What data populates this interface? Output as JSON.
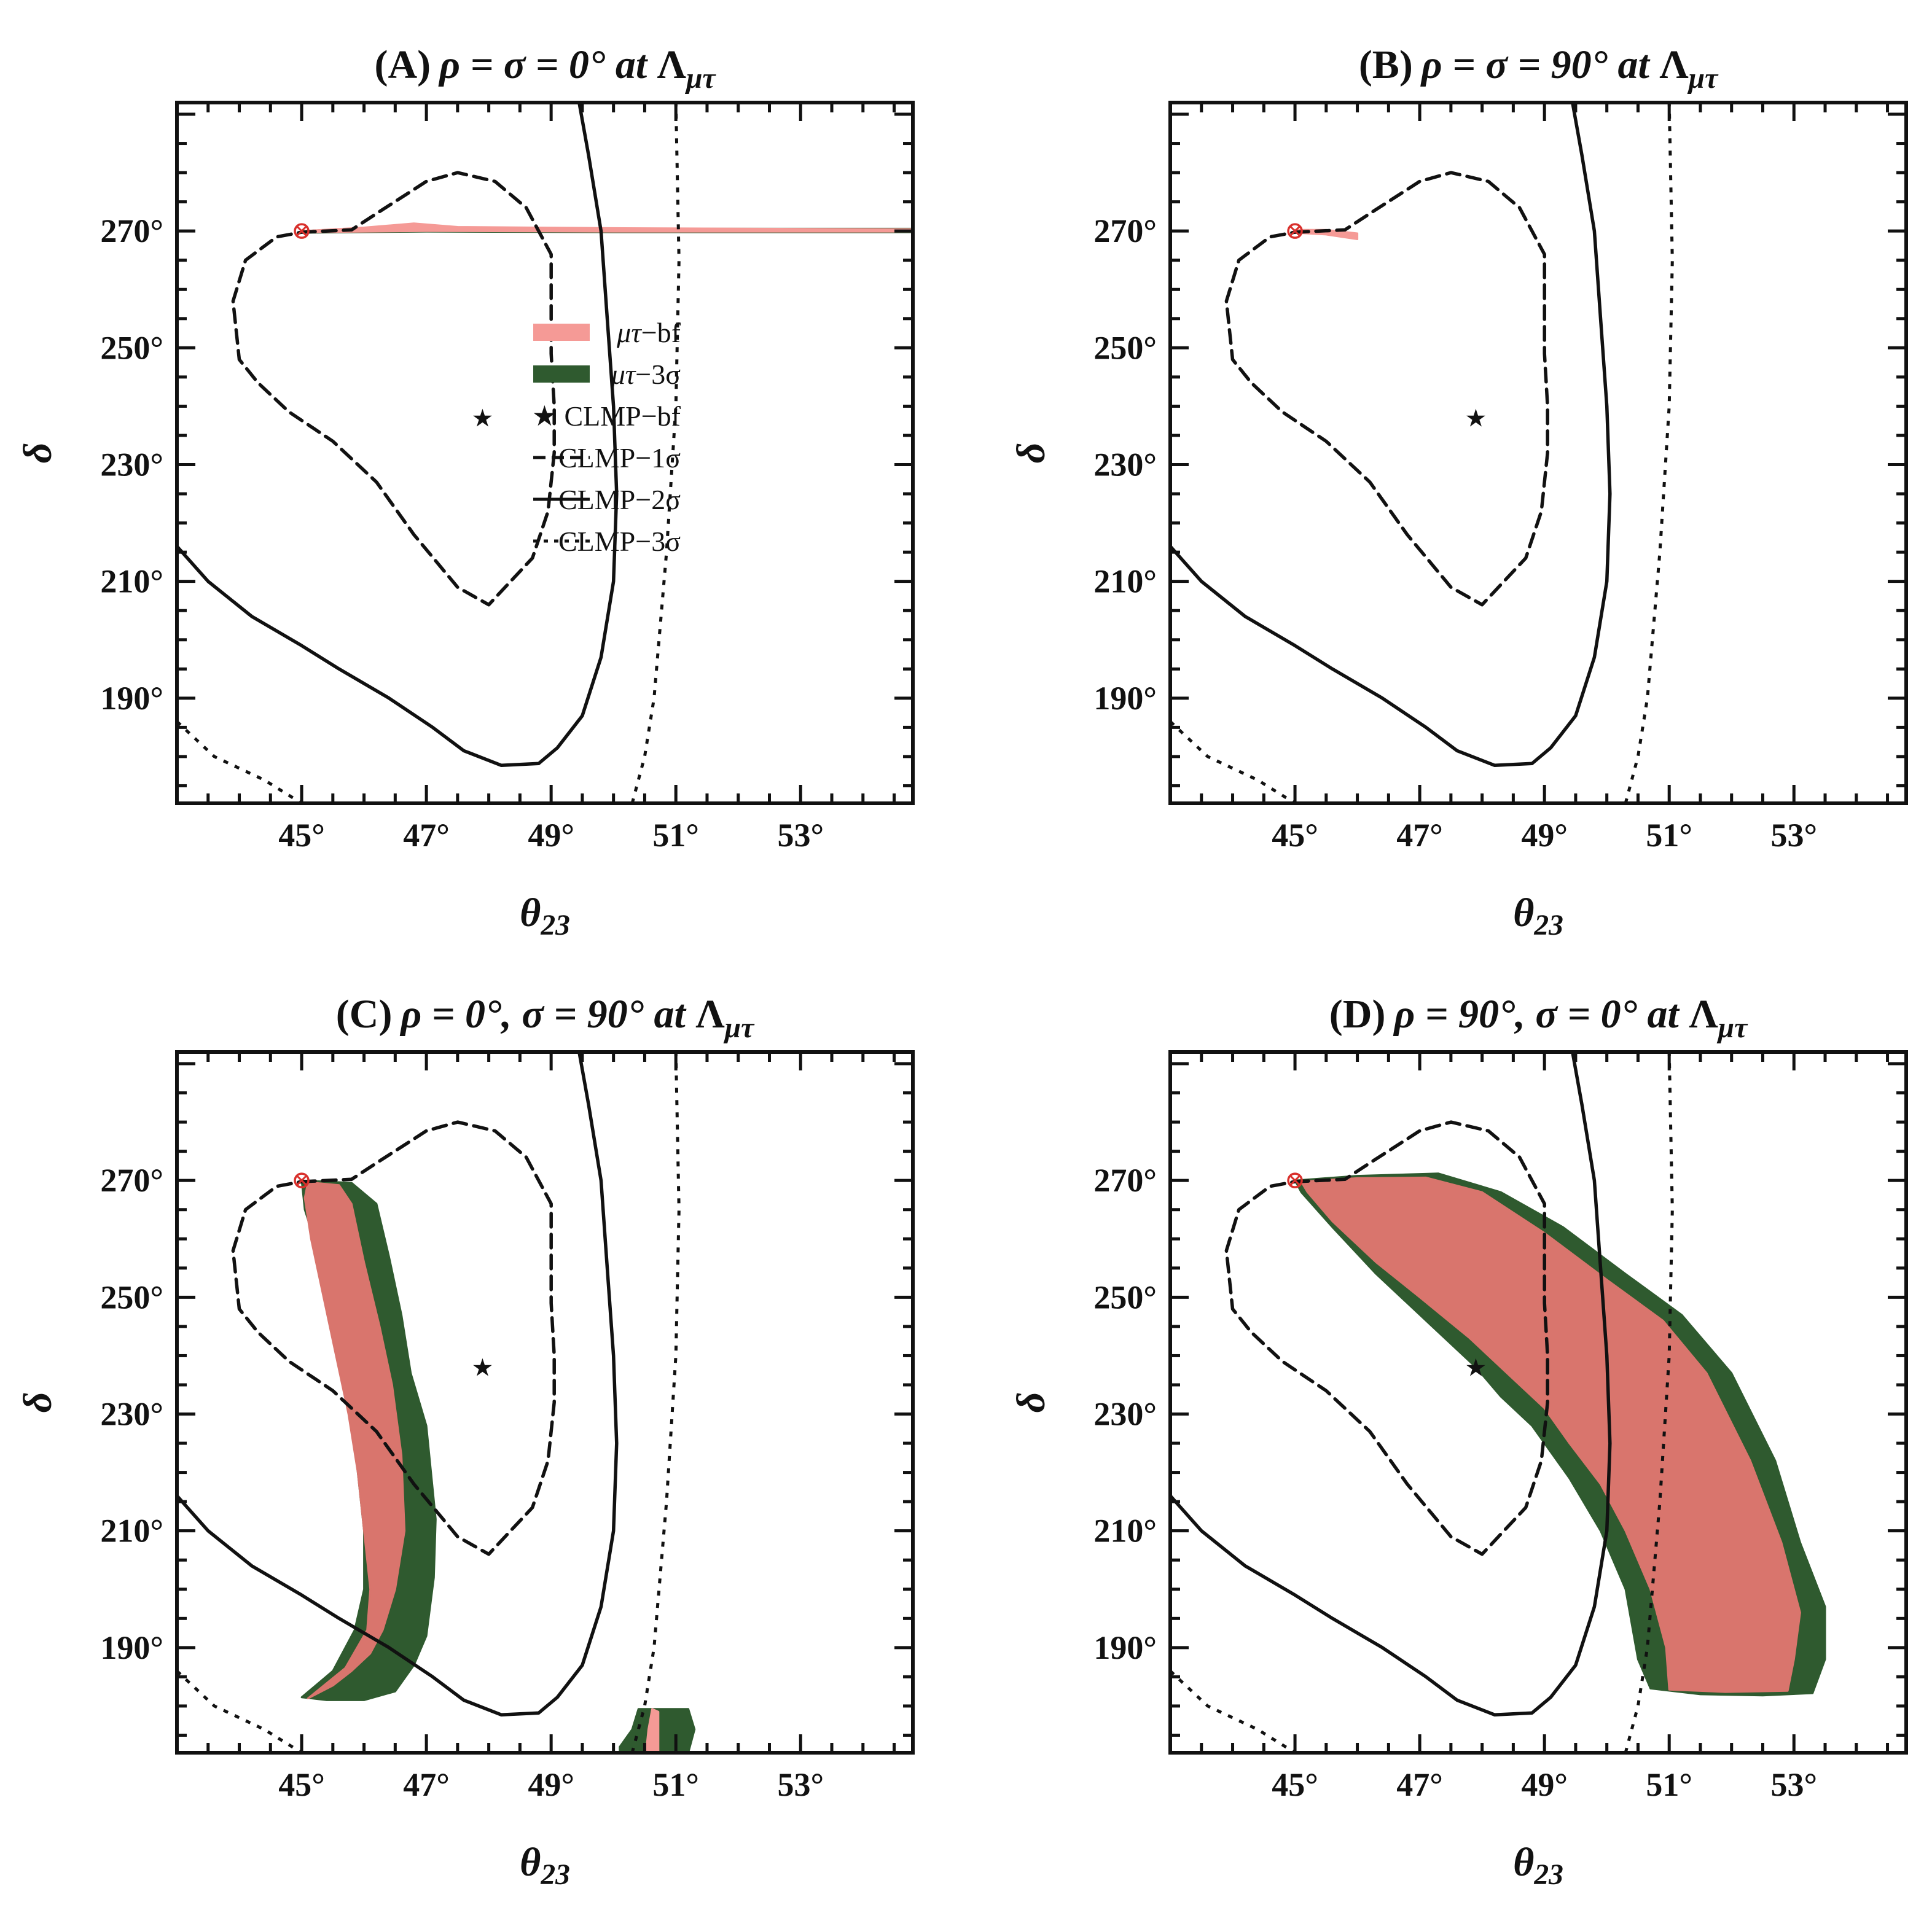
{
  "chart_data": [
    {
      "panel": "A",
      "type": "contour",
      "title": "(A) ρ = σ = 0° at Λμτ",
      "title_parts": {
        "label": "(A)",
        "condition": "ρ = σ = 0° at ",
        "scale": "Λ",
        "scale_sub": "μτ"
      },
      "xlabel": "θ23",
      "xlabel_main": "θ",
      "xlabel_sub": "23",
      "ylabel": "δ",
      "xlim": [
        43.0,
        54.8
      ],
      "ylim": [
        172,
        292
      ],
      "xticks": [
        45,
        47,
        49,
        51,
        53
      ],
      "xtick_labels": [
        "45°",
        "47°",
        "49°",
        "51°",
        "53°"
      ],
      "yticks": [
        190,
        210,
        230,
        250,
        270
      ],
      "ytick_labels": [
        "190°",
        "210°",
        "230°",
        "250°",
        "270°"
      ],
      "show_legend": true,
      "regions": [
        {
          "name": "μτ-3σ",
          "color": "#2f5a2f",
          "points": [
            [
              45.0,
              270.0
            ],
            [
              46.0,
              270.5
            ],
            [
              46.8,
              271.2
            ],
            [
              47.5,
              270.6
            ],
            [
              50,
              270.4
            ],
            [
              54.8,
              270.4
            ],
            [
              54.8,
              269.8
            ],
            [
              50,
              269.8
            ],
            [
              47,
              269.9
            ],
            [
              45.0,
              269.7
            ]
          ]
        },
        {
          "name": "μτ-bf",
          "color": "#f59a96",
          "points": [
            [
              45.0,
              270.0
            ],
            [
              46.0,
              270.6
            ],
            [
              46.8,
              271.3
            ],
            [
              47.5,
              270.7
            ],
            [
              50,
              270.5
            ],
            [
              54.8,
              270.3
            ],
            [
              54.8,
              269.9
            ],
            [
              50,
              269.9
            ],
            [
              47,
              270.0
            ],
            [
              45.0,
              269.8
            ]
          ]
        }
      ]
    },
    {
      "panel": "B",
      "type": "contour",
      "title": "(B) ρ = σ = 90° at Λμτ",
      "title_parts": {
        "label": "(B)",
        "condition": "ρ = σ = 90° at ",
        "scale": "Λ",
        "scale_sub": "μτ"
      },
      "xlabel": "θ23",
      "xlabel_main": "θ",
      "xlabel_sub": "23",
      "ylabel": "δ",
      "xlim": [
        43.0,
        54.8
      ],
      "ylim": [
        172,
        292
      ],
      "xticks": [
        45,
        47,
        49,
        51,
        53
      ],
      "xtick_labels": [
        "45°",
        "47°",
        "49°",
        "51°",
        "53°"
      ],
      "yticks": [
        190,
        210,
        230,
        250,
        270
      ],
      "ytick_labels": [
        "190°",
        "210°",
        "230°",
        "250°",
        "270°"
      ],
      "show_legend": false,
      "regions": [
        {
          "name": "μτ-bf",
          "color": "#f59a96",
          "points": [
            [
              45.0,
              270.2
            ],
            [
              45.5,
              270.2
            ],
            [
              46.0,
              269.6
            ],
            [
              46.0,
              268.6
            ],
            [
              45.5,
              269.4
            ],
            [
              45.0,
              269.7
            ]
          ]
        }
      ]
    },
    {
      "panel": "C",
      "type": "contour",
      "title": "(C) ρ = 0°, σ = 90° at Λμτ",
      "title_parts": {
        "label": "(C)",
        "condition": "ρ = 0°, σ = 90° at ",
        "scale": "Λ",
        "scale_sub": "μτ"
      },
      "xlabel": "θ23",
      "xlabel_main": "θ",
      "xlabel_sub": "23",
      "ylabel": "δ",
      "xlim": [
        43.0,
        54.8
      ],
      "ylim": [
        172,
        292
      ],
      "xticks": [
        45,
        47,
        49,
        51,
        53
      ],
      "xtick_labels": [
        "45°",
        "47°",
        "49°",
        "51°",
        "53°"
      ],
      "yticks": [
        190,
        210,
        230,
        250,
        270
      ],
      "ytick_labels": [
        "190°",
        "210°",
        "230°",
        "250°",
        "270°"
      ],
      "show_legend": false,
      "regions": [
        {
          "name": "μτ-3σ",
          "color": "#2f5a2f",
          "points": [
            [
              45.0,
              270.0
            ],
            [
              45.8,
              269.6
            ],
            [
              46.2,
              266.0
            ],
            [
              46.4,
              257
            ],
            [
              46.6,
              247
            ],
            [
              46.75,
              237
            ],
            [
              47.0,
              228
            ],
            [
              47.15,
              212
            ],
            [
              47.12,
              202
            ],
            [
              47.0,
              192
            ],
            [
              46.8,
              187
            ],
            [
              46.5,
              182.5
            ],
            [
              46.0,
              181.0
            ],
            [
              45.4,
              181.0
            ],
            [
              45.0,
              181.5
            ],
            [
              45.5,
              186
            ],
            [
              45.85,
              193
            ],
            [
              46.0,
              200
            ],
            [
              46.0,
              210
            ],
            [
              45.9,
              220
            ],
            [
              45.8,
              230
            ],
            [
              45.65,
              240
            ],
            [
              45.4,
              250
            ],
            [
              45.2,
              260
            ],
            [
              45.05,
              265
            ]
          ]
        },
        {
          "name": "μτ-bf",
          "color": "#d9756d",
          "points": [
            [
              45.1,
              269.7
            ],
            [
              45.6,
              269.2
            ],
            [
              45.8,
              266.0
            ],
            [
              46.0,
              256
            ],
            [
              46.25,
              245
            ],
            [
              46.45,
              235
            ],
            [
              46.6,
              223
            ],
            [
              46.65,
              210
            ],
            [
              46.5,
              200
            ],
            [
              46.3,
              193
            ],
            [
              46.1,
              189
            ],
            [
              45.8,
              186
            ],
            [
              45.5,
              183.5
            ],
            [
              45.1,
              181.3
            ],
            [
              45.7,
              186.5
            ],
            [
              46.05,
              193
            ],
            [
              46.1,
              200
            ],
            [
              46.0,
              210
            ],
            [
              45.9,
              220
            ],
            [
              45.75,
              230
            ],
            [
              45.55,
              240
            ],
            [
              45.35,
              250
            ],
            [
              45.15,
              260
            ],
            [
              45.05,
              267
            ]
          ]
        },
        {
          "name": "μτ-3σ",
          "color": "#2f5a2f",
          "points": [
            [
              50.1,
              172
            ],
            [
              51.2,
              172
            ],
            [
              51.3,
              176
            ],
            [
              51.2,
              179.5
            ],
            [
              50.4,
              179.5
            ],
            [
              50.3,
              176
            ],
            [
              50.1,
              173
            ]
          ]
        },
        {
          "name": "μτ-bf",
          "color": "#f59a96",
          "points": [
            [
              50.52,
              172
            ],
            [
              50.72,
              172
            ],
            [
              50.72,
              179
            ],
            [
              50.62,
              179.5
            ],
            [
              50.56,
              176
            ]
          ]
        }
      ]
    },
    {
      "panel": "D",
      "type": "contour",
      "title": "(D) ρ = 90°, σ = 0° at Λμτ",
      "title_parts": {
        "label": "(D)",
        "condition": "ρ = 90°, σ = 0° at ",
        "scale": "Λ",
        "scale_sub": "μτ"
      },
      "xlabel": "θ23",
      "xlabel_main": "θ",
      "xlabel_sub": "23",
      "ylabel": "δ",
      "xlim": [
        43.0,
        54.8
      ],
      "ylim": [
        172,
        292
      ],
      "xticks": [
        45,
        47,
        49,
        51,
        53
      ],
      "xtick_labels": [
        "45°",
        "47°",
        "49°",
        "51°",
        "53°"
      ],
      "yticks": [
        190,
        210,
        230,
        250,
        270
      ],
      "ytick_labels": [
        "190°",
        "210°",
        "230°",
        "250°",
        "270°"
      ],
      "show_legend": false,
      "regions": [
        {
          "name": "μτ-3σ",
          "color": "#2f5a2f",
          "points": [
            [
              45.0,
              270.0
            ],
            [
              46.0,
              270.8
            ],
            [
              47.3,
              271.2
            ],
            [
              48.3,
              268.0
            ],
            [
              49.3,
              262
            ],
            [
              50.3,
              254
            ],
            [
              51.2,
              247
            ],
            [
              52.0,
              237
            ],
            [
              52.7,
              222
            ],
            [
              53.1,
              208
            ],
            [
              53.5,
              197
            ],
            [
              53.5,
              188
            ],
            [
              53.3,
              182.2
            ],
            [
              52.5,
              181.8
            ],
            [
              51.5,
              182.0
            ],
            [
              50.7,
              183.0
            ],
            [
              50.5,
              188
            ],
            [
              50.3,
              200
            ],
            [
              49.9,
              210
            ],
            [
              49.4,
              219
            ],
            [
              48.8,
              228
            ],
            [
              48.3,
              233
            ],
            [
              47.9,
              238
            ],
            [
              47.2,
              245
            ],
            [
              46.3,
              254
            ],
            [
              45.6,
              262
            ],
            [
              45.1,
              268
            ]
          ]
        },
        {
          "name": "μτ-bf",
          "color": "#d9756d",
          "points": [
            [
              45.1,
              269.8
            ],
            [
              46.0,
              270.4
            ],
            [
              47.1,
              270.5
            ],
            [
              48.0,
              268.0
            ],
            [
              49.0,
              261
            ],
            [
              50.0,
              253
            ],
            [
              50.9,
              246
            ],
            [
              51.6,
              237
            ],
            [
              52.3,
              222
            ],
            [
              52.8,
              208
            ],
            [
              53.1,
              196
            ],
            [
              53.0,
              188
            ],
            [
              52.9,
              182.6
            ],
            [
              51.9,
              182.4
            ],
            [
              51.0,
              182.8
            ],
            [
              50.95,
              190
            ],
            [
              50.7,
              200
            ],
            [
              50.3,
              210
            ],
            [
              49.9,
              218
            ],
            [
              49.4,
              225
            ],
            [
              49.0,
              231
            ],
            [
              48.5,
              236
            ],
            [
              47.8,
              243
            ],
            [
              47.0,
              250
            ],
            [
              46.3,
              256
            ],
            [
              45.6,
              263
            ],
            [
              45.2,
              268
            ]
          ]
        }
      ]
    }
  ],
  "shared": {
    "contours": {
      "one_sigma": {
        "name": "CLMP-1σ",
        "dash": "dashed",
        "points": [
          [
            45.0,
            269.8
          ],
          [
            45.8,
            270.2
          ],
          [
            46.2,
            273
          ],
          [
            47.0,
            278.5
          ],
          [
            47.5,
            280
          ],
          [
            48.1,
            278.5
          ],
          [
            48.6,
            274
          ],
          [
            49.0,
            266
          ],
          [
            49.0,
            258
          ],
          [
            49.0,
            249
          ],
          [
            49.05,
            240
          ],
          [
            49.05,
            232
          ],
          [
            48.95,
            222
          ],
          [
            48.7,
            214
          ],
          [
            48.0,
            206
          ],
          [
            47.5,
            209
          ],
          [
            46.8,
            218
          ],
          [
            46.2,
            227
          ],
          [
            45.5,
            234
          ],
          [
            44.8,
            239
          ],
          [
            44.3,
            244
          ],
          [
            44.0,
            248
          ],
          [
            43.9,
            258
          ],
          [
            44.1,
            265
          ],
          [
            44.6,
            269
          ]
        ]
      },
      "two_sigma": [
        {
          "name": "CLMP-2σ",
          "dash": "solid",
          "points": [
            [
              43.0,
              216
            ],
            [
              43.5,
              210
            ],
            [
              44.2,
              204
            ],
            [
              45.0,
              199
            ],
            [
              45.6,
              195
            ],
            [
              46.4,
              190
            ],
            [
              47.1,
              185
            ],
            [
              47.6,
              181
            ],
            [
              48.2,
              178.5
            ],
            [
              48.8,
              178.8
            ],
            [
              49.1,
              181.5
            ],
            [
              49.5,
              187
            ],
            [
              49.8,
              197
            ],
            [
              50.0,
              210
            ],
            [
              50.05,
              225
            ],
            [
              50.0,
              240
            ],
            [
              49.9,
              255
            ],
            [
              49.8,
              270
            ],
            [
              49.6,
              283
            ],
            [
              49.45,
              292
            ]
          ]
        }
      ],
      "three_sigma": [
        {
          "name": "CLMP-3σ",
          "dash": "dotted",
          "points": [
            [
              50.3,
              172
            ],
            [
              50.5,
              180
            ],
            [
              50.65,
              190
            ],
            [
              50.85,
              215
            ],
            [
              51.0,
              240
            ],
            [
              51.05,
              265
            ],
            [
              51.0,
              292
            ]
          ]
        },
        {
          "name": "CLMP-3σ",
          "dash": "dotted",
          "points": [
            [
              43.0,
              186
            ],
            [
              43.6,
              180
            ],
            [
              44.4,
              176
            ],
            [
              45.0,
              172
            ]
          ]
        }
      ]
    },
    "best_fit": {
      "name": "CLMP-bf",
      "theta23": 47.9,
      "delta": 238
    },
    "marker": {
      "theta23": 45.0,
      "delta": 270,
      "color": "#d9302c"
    },
    "legend": [
      {
        "label_main": "μτ",
        "label_rest": "−bf",
        "style": "fill",
        "color": "#f59a96"
      },
      {
        "label_main": "μτ",
        "label_rest": "−3σ",
        "style": "fill",
        "color": "#2f5a2f"
      },
      {
        "label_main": "",
        "label_rest": "★  CLMP−bf",
        "style": "none"
      },
      {
        "label_main": "",
        "label_rest": "CLMP−1σ",
        "style": "dashed"
      },
      {
        "label_main": "",
        "label_rest": "CLMP−2σ",
        "style": "solid"
      },
      {
        "label_main": "",
        "label_rest": "CLMP−3σ",
        "style": "dotted"
      }
    ]
  }
}
